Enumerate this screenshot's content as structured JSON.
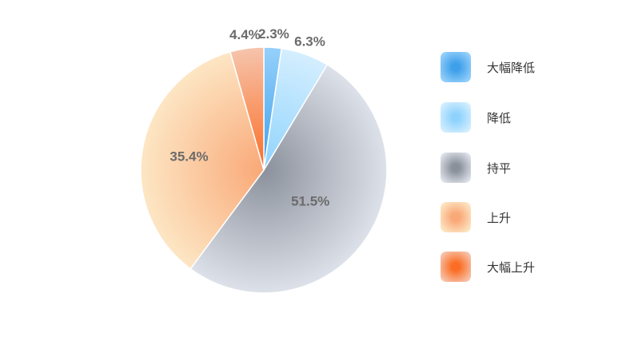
{
  "chart_data": {
    "type": "pie",
    "slices": [
      {
        "name": "大幅降低",
        "value": 2.3,
        "label": "2.3%",
        "color": "#3fa0ea",
        "color_light": "#95d0fb"
      },
      {
        "name": "降低",
        "value": 6.3,
        "label": "6.3%",
        "color": "#8fd3fd",
        "color_light": "#d4eefe"
      },
      {
        "name": "持平",
        "value": 51.5,
        "label": "51.5%",
        "color": "#8b919c",
        "color_light": "#dde1e9"
      },
      {
        "name": "上升",
        "value": 35.4,
        "label": "35.4%",
        "color": "#f9a877",
        "color_light": "#fde6c4"
      },
      {
        "name": "大幅上升",
        "value": 4.4,
        "label": "4.4%",
        "color": "#fb6d24",
        "color_light": "#f6c4ac"
      }
    ],
    "start_direction": "top",
    "direction": "clockwise",
    "legend_position": "right"
  }
}
